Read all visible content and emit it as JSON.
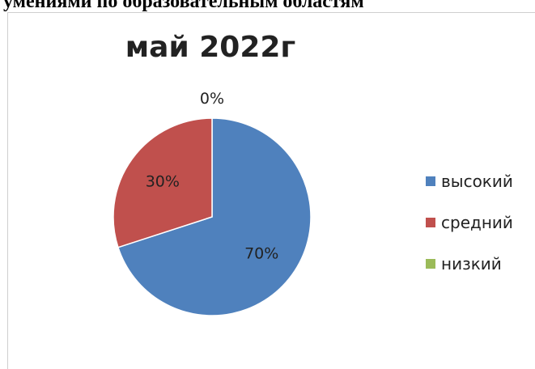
{
  "heading": "умениями по образовательным областям",
  "chart_data": {
    "type": "pie",
    "title": "май 2022г",
    "categories": [
      "высокий",
      "средний",
      "низкий"
    ],
    "values": [
      70,
      30,
      0
    ],
    "labels": [
      "70%",
      "30%",
      "0%"
    ],
    "colors": [
      "#4f81bd",
      "#c0504d",
      "#9bbb59"
    ],
    "legend_position": "right"
  }
}
